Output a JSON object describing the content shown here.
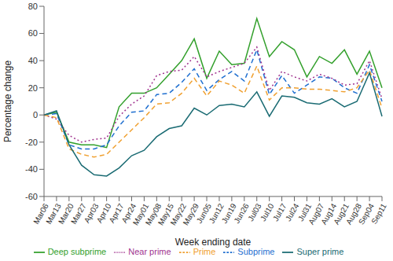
{
  "chart_data": {
    "type": "line",
    "x_label": "Week ending date",
    "y_label": "Percentage change",
    "categories": [
      "Mar06",
      "Mar13",
      "Mar20",
      "Mar27",
      "Apr03",
      "Apr10",
      "Apr17",
      "Apr24",
      "May01",
      "May08",
      "May15",
      "May22",
      "May29",
      "Jun05",
      "Jun12",
      "Jun19",
      "Jun26",
      "Jul03",
      "Jul10",
      "Jul17",
      "Jul24",
      "Jul31",
      "Aug07",
      "Aug14",
      "Aug21",
      "Aug28",
      "Sep04",
      "Sep11"
    ],
    "series": [
      {
        "name": "Deep subprime",
        "color": "#33a02c",
        "line_style": "solid",
        "values": [
          0,
          2,
          -20,
          -22,
          -22,
          -24,
          6,
          16,
          16,
          20,
          30,
          40,
          56,
          27,
          47,
          37,
          38,
          71,
          43,
          54,
          48,
          28,
          43,
          38,
          48,
          30,
          47,
          20
        ]
      },
      {
        "name": "Subprime",
        "color": "#1f6fd0",
        "line_style": "dashed",
        "values": [
          0,
          1,
          -22,
          -25,
          -25,
          -22,
          -8,
          2,
          3,
          15,
          16,
          24,
          34,
          18,
          26,
          32,
          25,
          48,
          15,
          29,
          16,
          22,
          28,
          27,
          20,
          16,
          37,
          10
        ]
      },
      {
        "name": "Near prime",
        "color": "#a0338f",
        "line_style": "dotted",
        "values": [
          0,
          -3,
          -15,
          -20,
          -18,
          -17,
          -1,
          8,
          14,
          29,
          32,
          33,
          43,
          28,
          32,
          35,
          38,
          50,
          18,
          32,
          28,
          25,
          30,
          27,
          22,
          23,
          40,
          12
        ]
      },
      {
        "name": "Prime",
        "color": "#f0a030",
        "line_style": "dashed",
        "values": [
          0,
          -2,
          -25,
          -29,
          -31,
          -29,
          -20,
          -11,
          -2,
          8,
          9,
          16,
          27,
          14,
          25,
          22,
          16,
          36,
          11,
          20,
          20,
          19,
          19,
          18,
          17,
          20,
          33,
          5
        ]
      },
      {
        "name": "Super prime",
        "color": "#1a6b73",
        "line_style": "solid",
        "values": [
          0,
          3,
          -22,
          -37,
          -44,
          -45,
          -39,
          -30,
          -26,
          -16,
          -10,
          -8,
          5,
          0,
          7,
          8,
          6,
          17,
          -1,
          14,
          13,
          9,
          8,
          12,
          6,
          10,
          31,
          -1
        ]
      }
    ],
    "ylim": [
      -60,
      80
    ],
    "yticks": [
      -60,
      -40,
      -20,
      0,
      20,
      40,
      60,
      80
    ],
    "grid": false,
    "legend": "bottom"
  }
}
